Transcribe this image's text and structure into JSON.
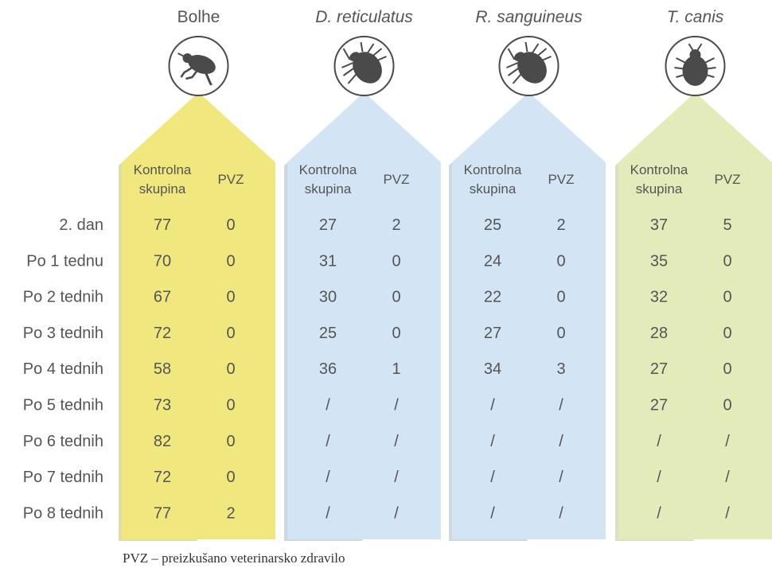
{
  "chart_data": {
    "type": "table",
    "groups": [
      {
        "name": "Bolhe",
        "italic": false,
        "color": "#f0e77f",
        "shadow": "#c9c06a",
        "icon": "flea-icon"
      },
      {
        "name": "D. reticulatus",
        "italic": true,
        "color": "#d3e4f4",
        "shadow": "#a8b8c8",
        "icon": "tick-icon"
      },
      {
        "name": "R. sanguineus",
        "italic": true,
        "color": "#d3e4f4",
        "shadow": "#a8b8c8",
        "icon": "tick-icon"
      },
      {
        "name": "T. canis",
        "italic": true,
        "color": "#e2ebb9",
        "shadow": "#bcc596",
        "icon": "louse-icon"
      }
    ],
    "subcolumns": [
      "Kontrolna\nskupina",
      "PVZ"
    ],
    "rows": [
      "2. dan",
      "Po 1 tednu",
      "Po 2 tednih",
      "Po 3 tednih",
      "Po 4 tednih",
      "Po 5 tednih",
      "Po 6 tednih",
      "Po 7 tednih",
      "Po 8 tednih"
    ],
    "values": [
      [
        [
          "77",
          "0"
        ],
        [
          "27",
          "2"
        ],
        [
          "25",
          "2"
        ],
        [
          "37",
          "5"
        ]
      ],
      [
        [
          "70",
          "0"
        ],
        [
          "31",
          "0"
        ],
        [
          "24",
          "0"
        ],
        [
          "35",
          "0"
        ]
      ],
      [
        [
          "67",
          "0"
        ],
        [
          "30",
          "0"
        ],
        [
          "22",
          "0"
        ],
        [
          "32",
          "0"
        ]
      ],
      [
        [
          "72",
          "0"
        ],
        [
          "25",
          "0"
        ],
        [
          "27",
          "0"
        ],
        [
          "28",
          "0"
        ]
      ],
      [
        [
          "58",
          "0"
        ],
        [
          "36",
          "1"
        ],
        [
          "34",
          "3"
        ],
        [
          "27",
          "0"
        ]
      ],
      [
        [
          "73",
          "0"
        ],
        [
          "/",
          "/"
        ],
        [
          "/",
          "/"
        ],
        [
          "27",
          "0"
        ]
      ],
      [
        [
          "82",
          "0"
        ],
        [
          "/",
          "/"
        ],
        [
          "/",
          "/"
        ],
        [
          "/",
          "/"
        ]
      ],
      [
        [
          "72",
          "0"
        ],
        [
          "/",
          "/"
        ],
        [
          "/",
          "/"
        ],
        [
          "/",
          "/"
        ]
      ],
      [
        [
          "77",
          "2"
        ],
        [
          "/",
          "/"
        ],
        [
          "/",
          "/"
        ],
        [
          "/",
          "/"
        ]
      ]
    ]
  },
  "footnote": "PVZ – preizkušano veterinarsko zdravilo"
}
